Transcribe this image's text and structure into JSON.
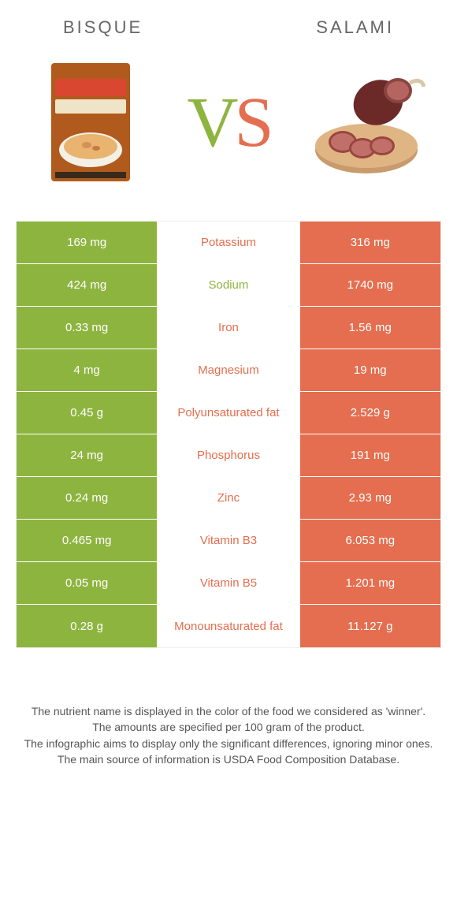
{
  "header": {
    "left_title": "BISQUE",
    "right_title": "SALAMI",
    "vs_v": "V",
    "vs_s": "S"
  },
  "colors": {
    "left": "#8eb440",
    "right": "#e46e4f",
    "text": "#555555",
    "background": "#ffffff"
  },
  "table": {
    "rows": [
      {
        "left": "169 mg",
        "label": "Potassium",
        "right": "316 mg",
        "winner": "right"
      },
      {
        "left": "424 mg",
        "label": "Sodium",
        "right": "1740 mg",
        "winner": "left"
      },
      {
        "left": "0.33 mg",
        "label": "Iron",
        "right": "1.56 mg",
        "winner": "right"
      },
      {
        "left": "4 mg",
        "label": "Magnesium",
        "right": "19 mg",
        "winner": "right"
      },
      {
        "left": "0.45 g",
        "label": "Polyunsaturated fat",
        "right": "2.529 g",
        "winner": "right"
      },
      {
        "left": "24 mg",
        "label": "Phosphorus",
        "right": "191 mg",
        "winner": "right"
      },
      {
        "left": "0.24 mg",
        "label": "Zinc",
        "right": "2.93 mg",
        "winner": "right"
      },
      {
        "left": "0.465 mg",
        "label": "Vitamin B3",
        "right": "6.053 mg",
        "winner": "right"
      },
      {
        "left": "0.05 mg",
        "label": "Vitamin B5",
        "right": "1.201 mg",
        "winner": "right"
      },
      {
        "left": "0.28 g",
        "label": "Monounsaturated fat",
        "right": "11.127 g",
        "winner": "right"
      }
    ]
  },
  "notes": {
    "line1": "The nutrient name is displayed in the color of the food we considered as 'winner'.",
    "line2": "The amounts are specified per 100 gram of the product.",
    "line3": "The infographic aims to display only the significant differences, ignoring minor ones.",
    "line4": "The main source of information is USDA Food Composition Database."
  }
}
